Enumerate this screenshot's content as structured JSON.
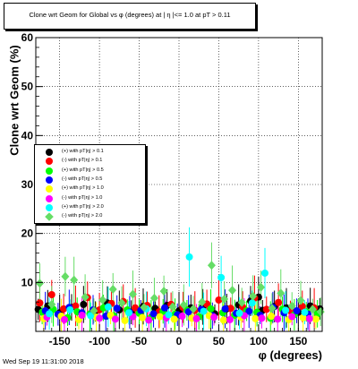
{
  "chart_data": {
    "type": "scatter",
    "title": "Clone wrt Geom for Global vs φ (degrees) at | η |<= 1.0 at pT > 0.11",
    "xlabel": "φ (degrees)",
    "ylabel": "Clone wrt Geom (%)",
    "xlim": [
      -180,
      180
    ],
    "ylim": [
      0,
      60
    ],
    "x_ticks": [
      "-150",
      "-100",
      "-50",
      "0",
      "50",
      "100",
      "150"
    ],
    "y_ticks": [
      "0",
      "10",
      "20",
      "30",
      "40",
      "50",
      "60"
    ],
    "grid": true,
    "legend_position": "mid-left",
    "footer": "Wed Sep 19 11:31:00 2018",
    "series": [
      {
        "name": "(+) with pT|η| > 0.1",
        "color": "#000000",
        "marker": "circle",
        "x": [
          -177,
          -165,
          -150,
          -135,
          -120,
          -105,
          -90,
          -75,
          -60,
          -45,
          -30,
          -15,
          0,
          15,
          30,
          45,
          60,
          75,
          90,
          100,
          105,
          120,
          135,
          150,
          165,
          177
        ],
        "y": [
          4.5,
          5.2,
          3.8,
          4.9,
          5.5,
          4.1,
          5.8,
          4.4,
          3.9,
          5.1,
          4.7,
          5.3,
          4.2,
          4.8,
          5.0,
          3.6,
          4.6,
          5.4,
          6.2,
          7.0,
          4.3,
          5.1,
          4.8,
          3.9,
          5.2,
          4.6
        ]
      },
      {
        "name": "(-) with pT|η| > 0.1",
        "color": "#ff0000",
        "marker": "circle",
        "x": [
          -175,
          -160,
          -145,
          -130,
          -115,
          -100,
          -85,
          -70,
          -55,
          -40,
          -25,
          -10,
          5,
          20,
          35,
          50,
          65,
          80,
          95,
          110,
          125,
          140,
          155,
          170
        ],
        "y": [
          5.8,
          7.5,
          4.6,
          5.2,
          6.9,
          4.4,
          5.7,
          6.1,
          4.8,
          5.3,
          4.0,
          5.5,
          4.9,
          4.3,
          5.6,
          6.4,
          4.7,
          5.0,
          6.8,
          4.5,
          5.9,
          4.2,
          5.1,
          4.8
        ]
      },
      {
        "name": "(+) with pT|η| > 0.5",
        "color": "#00ff00",
        "marker": "circle",
        "x": [
          -172,
          -158,
          -140,
          -128,
          -112,
          -95,
          -82,
          -65,
          -50,
          -35,
          -20,
          -5,
          10,
          25,
          40,
          55,
          70,
          85,
          98,
          115,
          130,
          145,
          160,
          174
        ],
        "y": [
          3.9,
          4.5,
          2.8,
          4.0,
          3.6,
          4.8,
          3.2,
          4.4,
          3.7,
          2.9,
          4.1,
          3.5,
          4.3,
          3.0,
          4.6,
          3.8,
          3.3,
          4.2,
          3.9,
          2.7,
          4.5,
          3.4,
          4.0,
          3.6
        ]
      },
      {
        "name": "(-) with pT|η| > 0.5",
        "color": "#0000ff",
        "marker": "circle",
        "x": [
          -168,
          -152,
          -138,
          -122,
          -108,
          -92,
          -78,
          -62,
          -48,
          -32,
          -18,
          -2,
          12,
          28,
          42,
          58,
          72,
          88,
          102,
          118,
          132,
          148,
          162
        ],
        "y": [
          4.2,
          3.5,
          4.9,
          3.8,
          4.4,
          3.1,
          4.7,
          3.9,
          4.3,
          3.6,
          4.8,
          3.4,
          4.0,
          4.5,
          3.2,
          4.6,
          3.7,
          4.1,
          3.3,
          4.9,
          3.8,
          4.2,
          3.5
        ]
      },
      {
        "name": "(+) with pT|η| > 1.0",
        "color": "#ffff00",
        "marker": "circle",
        "x": [
          -170,
          -148,
          -126,
          -104,
          -86,
          -68,
          -46,
          -24,
          -6,
          16,
          38,
          56,
          78,
          96,
          116,
          138,
          156,
          172
        ],
        "y": [
          2.6,
          3.1,
          2.4,
          2.9,
          3.3,
          2.2,
          2.8,
          3.0,
          2.5,
          2.7,
          3.2,
          2.3,
          2.9,
          2.6,
          3.1,
          2.4,
          2.8,
          2.5
        ]
      },
      {
        "name": "(-) with pT|η| > 1.0",
        "color": "#ff00ff",
        "marker": "circle",
        "x": [
          -166,
          -144,
          -122,
          -100,
          -80,
          -58,
          -38,
          -16,
          4,
          22,
          44,
          64,
          82,
          104,
          124,
          142,
          164
        ],
        "y": [
          2.9,
          2.4,
          3.3,
          2.7,
          2.5,
          3.0,
          2.3,
          2.8,
          3.1,
          2.6,
          2.9,
          2.4,
          3.2,
          2.7,
          2.5,
          3.0,
          2.6
        ]
      },
      {
        "name": "(+) with pT|η| > 2.0",
        "color": "#00ffff",
        "marker": "circle",
        "x": [
          -163,
          -137,
          -111,
          -89,
          -63,
          -41,
          -13,
          13,
          31,
          53,
          76,
          92,
          108,
          134,
          158
        ],
        "y": [
          3.6,
          4.4,
          3.2,
          5.0,
          3.8,
          4.6,
          3.4,
          15.2,
          4.1,
          11.0,
          3.7,
          5.8,
          11.9,
          4.3,
          3.9
        ]
      },
      {
        "name": "(-) with pT|η| > 2.0",
        "color": "#66dd66",
        "marker": "diamond",
        "x": [
          -175,
          -160,
          -143,
          -132,
          -118,
          -107,
          -96,
          -83,
          -72,
          -58,
          -44,
          -31,
          -19,
          -8,
          6,
          18,
          29,
          41,
          57,
          67,
          79,
          93,
          103,
          117,
          128,
          142,
          153,
          168,
          178
        ],
        "y": [
          9.8,
          5.5,
          11.2,
          10.5,
          7.0,
          4.2,
          6.4,
          8.6,
          5.8,
          7.6,
          4.9,
          6.8,
          8.2,
          5.0,
          5.4,
          4.6,
          6.0,
          13.5,
          6.6,
          8.4,
          5.9,
          7.2,
          9.0,
          4.7,
          7.8,
          5.2,
          6.3,
          4.5,
          4.0
        ]
      }
    ]
  }
}
